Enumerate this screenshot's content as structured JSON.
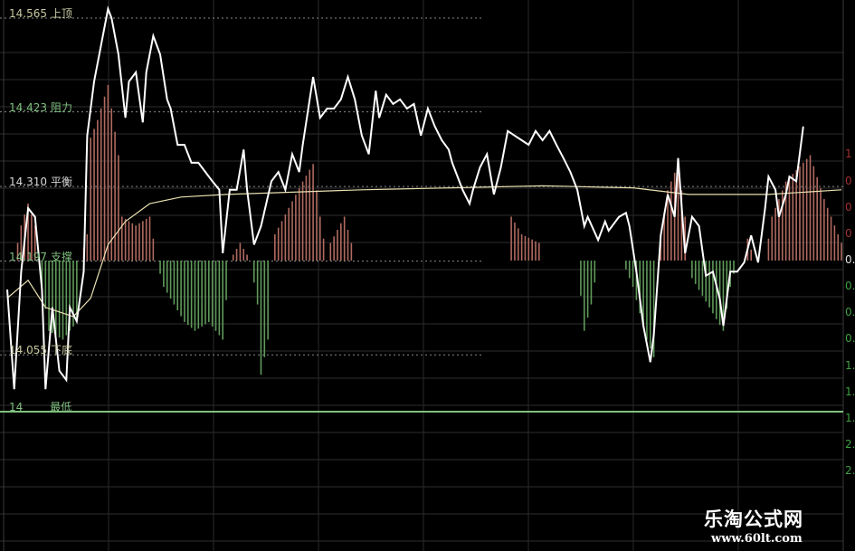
{
  "chart_data": {
    "type": "line",
    "title": "",
    "xlabel": "",
    "ylabel": "",
    "grid": true,
    "xlim": [
      0,
      240
    ],
    "colors": {
      "price": "#ffffff",
      "average": "#e8e0b0",
      "hist_up": "#b06a60",
      "hist_down": "#5f9a5a",
      "level_label": "#c8c8a0",
      "support_label": "#7fbf7f",
      "lowest": "#7fbf7f"
    },
    "levels": [
      {
        "value": "14.565",
        "label": "上顶",
        "price": 14.565,
        "style": "dashed",
        "color": "#c8c8a0"
      },
      {
        "value": "14.423",
        "label": "阻力",
        "price": 14.423,
        "style": "dashed",
        "color": "#7fbf7f"
      },
      {
        "value": "14.310",
        "label": "平衡",
        "price": 14.31,
        "style": "dashed",
        "color": "#d8d8d8"
      },
      {
        "value": "14.197",
        "label": "支撑",
        "price": 14.197,
        "style": "dashed",
        "color": "#7fbf7f"
      },
      {
        "value": "14.055",
        "label": "下底",
        "price": 14.055,
        "style": "dashed",
        "color": "#c8c8a0"
      },
      {
        "value": "14",
        "label": "最低",
        "price": 14.0,
        "style": "solid",
        "color": "#7fbf7f"
      }
    ],
    "right_axis_labels": [
      {
        "text": "1",
        "value": 1.2,
        "color": "#a03030"
      },
      {
        "text": "0",
        "value": 0.9,
        "color": "#a03030"
      },
      {
        "text": "0",
        "value": 0.6,
        "color": "#a03030"
      },
      {
        "text": "0",
        "value": 0.3,
        "color": "#a03030"
      },
      {
        "text": "0.",
        "value": 0.0,
        "color": "#e0e0e0"
      },
      {
        "text": "0.",
        "value": -0.3,
        "color": "#3fa03f"
      },
      {
        "text": "0.",
        "value": -0.6,
        "color": "#3fa03f"
      },
      {
        "text": "0.",
        "value": -0.9,
        "color": "#3fa03f"
      },
      {
        "text": "1.",
        "value": -1.2,
        "color": "#3fa03f"
      },
      {
        "text": "1.",
        "value": -1.5,
        "color": "#3fa03f"
      },
      {
        "text": "1.",
        "value": -1.8,
        "color": "#3fa03f"
      },
      {
        "text": "2.",
        "value": -2.1,
        "color": "#3fa03f"
      },
      {
        "text": "2.",
        "value": -2.4,
        "color": "#3fa03f"
      }
    ],
    "series": [
      {
        "key": "price",
        "points": [
          [
            0,
            14.154
          ],
          [
            2,
            14.003
          ],
          [
            4,
            14.181
          ],
          [
            6,
            14.277
          ],
          [
            8,
            14.264
          ],
          [
            10,
            14.154
          ],
          [
            11,
            14.003
          ],
          [
            13,
            14.127
          ],
          [
            15,
            14.031
          ],
          [
            17,
            14.017
          ],
          [
            18,
            14.127
          ],
          [
            20,
            14.106
          ],
          [
            22,
            14.181
          ],
          [
            23,
            14.387
          ],
          [
            25,
            14.469
          ],
          [
            27,
            14.524
          ],
          [
            29,
            14.579
          ],
          [
            30,
            14.565
          ],
          [
            32,
            14.51
          ],
          [
            34,
            14.414
          ],
          [
            35,
            14.469
          ],
          [
            37,
            14.483
          ],
          [
            39,
            14.407
          ],
          [
            40,
            14.483
          ],
          [
            42,
            14.538
          ],
          [
            44,
            14.51
          ],
          [
            46,
            14.442
          ],
          [
            47,
            14.428
          ],
          [
            49,
            14.373
          ],
          [
            51,
            14.373
          ],
          [
            53,
            14.346
          ],
          [
            55,
            14.346
          ],
          [
            57,
            14.332
          ],
          [
            59,
            14.318
          ],
          [
            61,
            14.305
          ],
          [
            62,
            14.209
          ],
          [
            64,
            14.305
          ],
          [
            66,
            14.305
          ],
          [
            68,
            14.366
          ],
          [
            69,
            14.305
          ],
          [
            71,
            14.222
          ],
          [
            73,
            14.25
          ],
          [
            76,
            14.318
          ],
          [
            78,
            14.332
          ],
          [
            80,
            14.305
          ],
          [
            82,
            14.359
          ],
          [
            84,
            14.332
          ],
          [
            85,
            14.373
          ],
          [
            87,
            14.442
          ],
          [
            88,
            14.476
          ],
          [
            90,
            14.414
          ],
          [
            92,
            14.428
          ],
          [
            94,
            14.428
          ],
          [
            96,
            14.442
          ],
          [
            98,
            14.476
          ],
          [
            100,
            14.442
          ],
          [
            102,
            14.387
          ],
          [
            104,
            14.359
          ],
          [
            106,
            14.455
          ],
          [
            107,
            14.414
          ],
          [
            109,
            14.449
          ],
          [
            111,
            14.435
          ],
          [
            113,
            14.442
          ],
          [
            115,
            14.428
          ],
          [
            117,
            14.435
          ],
          [
            119,
            14.387
          ],
          [
            121,
            14.428
          ],
          [
            123,
            14.401
          ],
          [
            125,
            14.38
          ],
          [
            127,
            14.366
          ],
          [
            128,
            14.346
          ],
          [
            131,
            14.305
          ],
          [
            133,
            14.284
          ],
          [
            134,
            14.305
          ],
          [
            136,
            14.339
          ],
          [
            138,
            14.359
          ],
          [
            140,
            14.298
          ],
          [
            142,
            14.339
          ],
          [
            144,
            14.394
          ],
          [
            146,
            14.387
          ],
          [
            148,
            14.38
          ],
          [
            150,
            14.373
          ],
          [
            152,
            14.394
          ],
          [
            154,
            14.38
          ],
          [
            156,
            14.394
          ],
          [
            158,
            14.373
          ],
          [
            160,
            14.353
          ],
          [
            162,
            14.332
          ],
          [
            164,
            14.305
          ],
          [
            166,
            14.25
          ],
          [
            167,
            14.264
          ],
          [
            170,
            14.229
          ],
          [
            172,
            14.257
          ],
          [
            173,
            14.243
          ],
          [
            176,
            14.264
          ],
          [
            178,
            14.27
          ],
          [
            179,
            14.25
          ],
          [
            181,
            14.181
          ],
          [
            183,
            14.099
          ],
          [
            185,
            14.044
          ],
          [
            186,
            14.085
          ],
          [
            188,
            14.236
          ],
          [
            190,
            14.298
          ],
          [
            192,
            14.264
          ],
          [
            193,
            14.353
          ],
          [
            195,
            14.209
          ],
          [
            197,
            14.264
          ],
          [
            199,
            14.25
          ],
          [
            201,
            14.175
          ],
          [
            203,
            14.181
          ],
          [
            205,
            14.14
          ],
          [
            206,
            14.099
          ],
          [
            208,
            14.181
          ],
          [
            210,
            14.181
          ],
          [
            212,
            14.195
          ],
          [
            214,
            14.236
          ],
          [
            216,
            14.195
          ],
          [
            218,
            14.277
          ],
          [
            219,
            14.325
          ],
          [
            221,
            14.305
          ],
          [
            222,
            14.264
          ],
          [
            224,
            14.298
          ],
          [
            225,
            14.325
          ],
          [
            227,
            14.318
          ],
          [
            229,
            14.401
          ]
        ]
      },
      {
        "key": "average",
        "points": [
          [
            0,
            14.141
          ],
          [
            6,
            14.168
          ],
          [
            11,
            14.127
          ],
          [
            19,
            14.113
          ],
          [
            24,
            14.141
          ],
          [
            29,
            14.222
          ],
          [
            34,
            14.257
          ],
          [
            41,
            14.284
          ],
          [
            50,
            14.294
          ],
          [
            63,
            14.298
          ],
          [
            102,
            14.305
          ],
          [
            154,
            14.311
          ],
          [
            180,
            14.308
          ],
          [
            196,
            14.298
          ],
          [
            219,
            14.298
          ],
          [
            240,
            14.305
          ]
        ]
      }
    ],
    "histogram": [
      [
        2,
        0
      ],
      [
        4,
        0.4
      ],
      [
        6,
        0.65
      ],
      [
        8,
        0.4
      ],
      [
        9,
        0
      ],
      [
        10,
        -0.3
      ],
      [
        12,
        -0.8
      ],
      [
        16,
        -0.9
      ],
      [
        20,
        -0.7
      ],
      [
        21,
        0
      ],
      [
        23,
        0.3
      ],
      [
        24,
        1.4
      ],
      [
        26,
        1.6
      ],
      [
        29,
        2.0
      ],
      [
        32,
        1.2
      ],
      [
        33,
        0.5
      ],
      [
        37,
        0.4
      ],
      [
        41,
        0.5
      ],
      [
        43,
        0
      ],
      [
        45,
        -0.3
      ],
      [
        51,
        -0.7
      ],
      [
        54,
        -0.8
      ],
      [
        58,
        -0.7
      ],
      [
        62,
        -0.9
      ],
      [
        64,
        0
      ],
      [
        67,
        0.2
      ],
      [
        70,
        0
      ],
      [
        72,
        -0.5
      ],
      [
        73,
        -1.3
      ],
      [
        75,
        -0.9
      ],
      [
        76,
        0
      ],
      [
        77,
        0.3
      ],
      [
        81,
        0.6
      ],
      [
        85,
        0.9
      ],
      [
        88,
        1.1
      ],
      [
        90,
        0.5
      ],
      [
        92,
        0
      ],
      [
        93,
        0.2
      ],
      [
        97,
        0.5
      ],
      [
        99,
        0.2
      ],
      [
        100,
        0
      ],
      [
        144,
        0
      ],
      [
        145,
        0.5
      ],
      [
        148,
        0.3
      ],
      [
        153,
        0.2
      ],
      [
        154,
        0
      ],
      [
        164,
        0
      ],
      [
        166,
        -0.8
      ],
      [
        168,
        -0.5
      ],
      [
        170,
        0
      ],
      [
        177,
        0
      ],
      [
        180,
        -0.3
      ],
      [
        184,
        -0.9
      ],
      [
        186,
        -1.1
      ],
      [
        187,
        0
      ],
      [
        188,
        0.3
      ],
      [
        190,
        0.8
      ],
      [
        193,
        1.1
      ],
      [
        195,
        0.5
      ],
      [
        196,
        0
      ],
      [
        197,
        -0.2
      ],
      [
        203,
        -0.6
      ],
      [
        206,
        -0.8
      ],
      [
        208,
        -0.3
      ],
      [
        210,
        0
      ],
      [
        212,
        0
      ],
      [
        213,
        0.25
      ],
      [
        215,
        0
      ],
      [
        218,
        0
      ],
      [
        220,
        0.5
      ],
      [
        224,
        0.9
      ],
      [
        231,
        1.2
      ],
      [
        235,
        0.7
      ],
      [
        240,
        0.2
      ]
    ]
  },
  "watermark": {
    "name": "乐淘公式网",
    "url": "www.60lt.com"
  }
}
